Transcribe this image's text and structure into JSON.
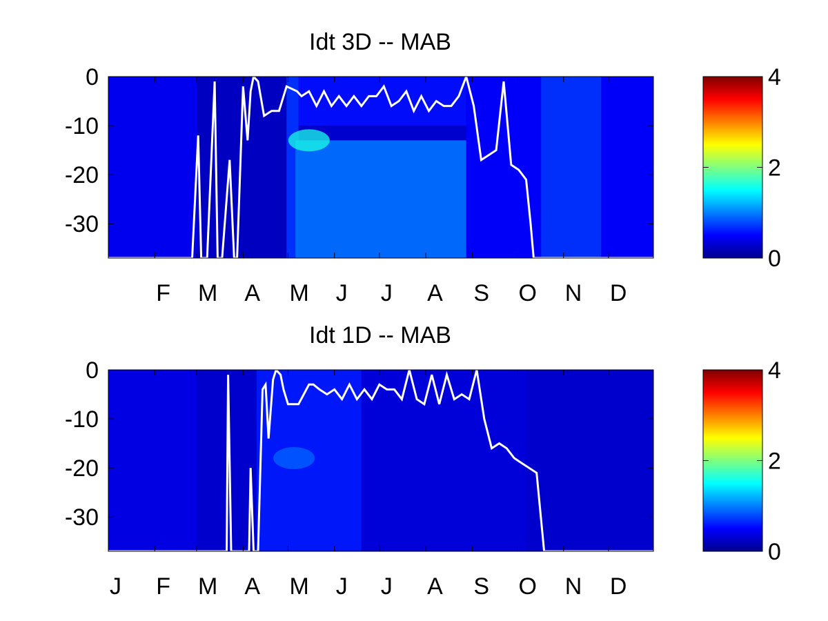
{
  "chart_data": [
    {
      "type": "heatmap",
      "title": "Idt 3D    -- MAB",
      "xlabel": "",
      "ylabel": "",
      "x_ticks": [
        "F",
        "M",
        "A",
        "M",
        "J",
        "J",
        "A",
        "S",
        "O",
        "N",
        "D"
      ],
      "x_tick_days": [
        32,
        60,
        91,
        121,
        152,
        182,
        213,
        244,
        274,
        305,
        335
      ],
      "xlim": [
        1,
        365
      ],
      "y_ticks": [
        0,
        -10,
        -20,
        -30
      ],
      "ylim": [
        -37,
        0
      ],
      "colorbar": {
        "ticks": [
          0,
          2,
          4
        ],
        "range": [
          0,
          4
        ],
        "colormap": "jet"
      },
      "field_regions": [
        {
          "day_start": 1,
          "day_end": 60,
          "depth_top": 0,
          "depth_bottom": -37,
          "value": 0.45
        },
        {
          "day_start": 60,
          "day_end": 120,
          "depth_top": 0,
          "depth_bottom": -37,
          "value": 0.25
        },
        {
          "day_start": 120,
          "day_end": 128,
          "depth_top": 0,
          "depth_bottom": -37,
          "value": 0.7
        },
        {
          "day_start": 126,
          "day_end": 240,
          "depth_top": -13,
          "depth_bottom": -37,
          "value": 0.95
        },
        {
          "day_start": 128,
          "day_end": 240,
          "depth_top": 0,
          "depth_bottom": -10,
          "value": 0.55
        },
        {
          "day_start": 240,
          "day_end": 290,
          "depth_top": 0,
          "depth_bottom": -37,
          "value": 0.5
        },
        {
          "day_start": 290,
          "day_end": 330,
          "depth_top": 0,
          "depth_bottom": -37,
          "value": 0.7
        },
        {
          "day_start": 330,
          "day_end": 365,
          "depth_top": 0,
          "depth_bottom": -37,
          "value": 0.5
        }
      ],
      "hotspot": {
        "day": 135,
        "depth": -13,
        "value": 1.6
      },
      "line_series": {
        "name": "",
        "color": "#ffffff",
        "days": [
          1,
          57,
          61,
          63,
          67,
          72,
          74,
          77,
          82,
          85,
          87,
          91,
          94,
          96,
          98,
          101,
          105,
          110,
          115,
          120,
          127,
          130,
          135,
          140,
          145,
          150,
          155,
          160,
          165,
          170,
          175,
          180,
          185,
          190,
          195,
          200,
          205,
          210,
          215,
          220,
          225,
          230,
          235,
          240,
          245,
          250,
          255,
          260,
          265,
          270,
          275,
          280,
          283,
          285,
          290,
          294,
          297,
          300,
          365
        ],
        "depths": [
          -37,
          -37,
          -12,
          -37,
          -37,
          -1,
          -37,
          -37,
          -17,
          -37,
          -37,
          -2,
          -13,
          -3,
          0,
          -1,
          -8,
          -7,
          -7,
          -2,
          -3,
          -4,
          -3,
          -6,
          -3,
          -6,
          -4,
          -6,
          -4,
          -6,
          -4,
          -4,
          -2,
          -6,
          -5,
          -3,
          -7,
          -4,
          -7,
          -5,
          -6,
          -6,
          -4,
          0,
          -6,
          -17,
          -16,
          -15,
          -1,
          -18,
          -19,
          -21,
          -30,
          -37,
          -37,
          -37,
          -37,
          -37,
          -37
        ]
      }
    },
    {
      "type": "heatmap",
      "title": "Idt 1D    -- MAB",
      "xlabel": "",
      "ylabel": "",
      "x_ticks": [
        "J",
        "F",
        "M",
        "A",
        "M",
        "J",
        "J",
        "A",
        "S",
        "O",
        "N",
        "D"
      ],
      "x_tick_days": [
        1,
        32,
        60,
        91,
        121,
        152,
        182,
        213,
        244,
        274,
        305,
        335
      ],
      "xlim": [
        1,
        365
      ],
      "y_ticks": [
        0,
        -10,
        -20,
        -30
      ],
      "ylim": [
        -37,
        0
      ],
      "colorbar": {
        "ticks": [
          0,
          2,
          4
        ],
        "range": [
          0,
          4
        ],
        "colormap": "jet"
      },
      "field_regions": [
        {
          "day_start": 1,
          "day_end": 60,
          "depth_top": 0,
          "depth_bottom": -37,
          "value": 0.4
        },
        {
          "day_start": 60,
          "day_end": 100,
          "depth_top": 0,
          "depth_bottom": -37,
          "value": 0.3
        },
        {
          "day_start": 100,
          "day_end": 170,
          "depth_top": 0,
          "depth_bottom": -37,
          "value": 0.6
        },
        {
          "day_start": 170,
          "day_end": 280,
          "depth_top": 0,
          "depth_bottom": -37,
          "value": 0.35
        },
        {
          "day_start": 280,
          "day_end": 365,
          "depth_top": 0,
          "depth_bottom": -37,
          "value": 0.3
        }
      ],
      "hotspot": {
        "day": 125,
        "depth": -18,
        "value": 0.9
      },
      "line_series": {
        "name": "",
        "color": "#ffffff",
        "days": [
          1,
          80,
          81,
          83,
          84,
          95,
          96,
          98,
          99,
          101,
          104,
          106,
          108,
          111,
          113,
          116,
          118,
          121,
          128,
          135,
          138,
          142,
          147,
          152,
          157,
          162,
          167,
          172,
          177,
          182,
          187,
          192,
          197,
          202,
          207,
          212,
          217,
          222,
          227,
          232,
          237,
          242,
          247,
          252,
          257,
          262,
          267,
          272,
          277,
          282,
          287,
          292,
          296,
          300,
          302,
          365
        ],
        "depths": [
          -37,
          -37,
          -1,
          -37,
          -37,
          -37,
          -20,
          -37,
          -37,
          -37,
          -4,
          -3,
          -14,
          -2,
          0,
          -1,
          -4,
          -7,
          -7,
          -3,
          -3,
          -4,
          -5,
          -4,
          -6,
          -3,
          -6,
          -4,
          -6,
          -3,
          -4,
          -4,
          -6,
          0,
          -6,
          -7,
          -1,
          -7,
          -1,
          -6,
          -5,
          -6,
          0,
          -10,
          -16,
          -15,
          -16,
          -18,
          -19,
          -20,
          -21,
          -37,
          -37,
          -37,
          -37,
          -37
        ]
      }
    }
  ]
}
